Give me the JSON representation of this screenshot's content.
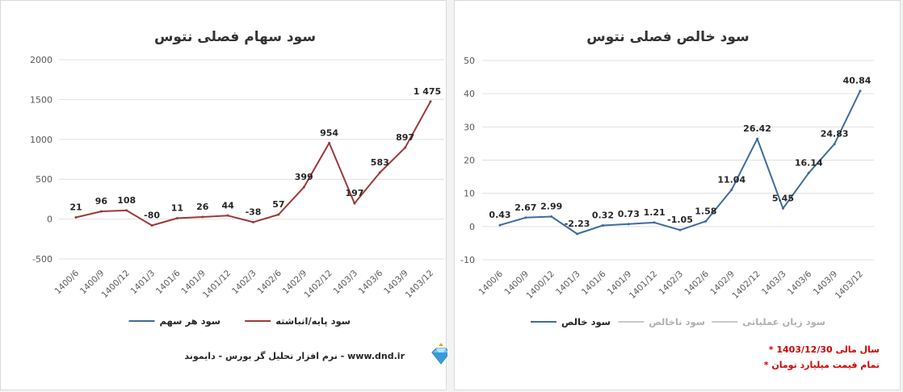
{
  "chart_data": [
    {
      "type": "line",
      "title": "سود سهام فصلی نتوس",
      "categories": [
        "1400/6",
        "1400/9",
        "1400/12",
        "1401/3",
        "1401/6",
        "1401/9",
        "1401/12",
        "1402/3",
        "1402/6",
        "1402/9",
        "1402/12",
        "1403/3",
        "1403/6",
        "1403/9",
        "1403/12"
      ],
      "series": [
        {
          "name": "سود پایه/انباشته",
          "color": "#9b3a3a",
          "values": [
            21,
            96,
            108,
            -80,
            11,
            26,
            44,
            -38,
            57,
            399,
            954,
            197,
            583,
            897,
            1475
          ],
          "labels": [
            "21",
            "96",
            "108",
            "-80",
            "11",
            "26",
            "44",
            "-38",
            "57",
            "399",
            "954",
            "197",
            "583",
            "897",
            "1 475"
          ]
        }
      ],
      "legend": [
        {
          "name": "سود پایه/انباشته",
          "color": "#9b3a3a",
          "active": true
        },
        {
          "name": "سود هر سهم",
          "color": "#3f6c9c",
          "active": true
        }
      ],
      "ylim": [
        -500,
        2000
      ],
      "yticks": [
        -500,
        0,
        500,
        1000,
        1500,
        2000
      ],
      "ytick_labels": [
        "-500",
        "0",
        "500",
        "1000",
        "1500",
        "2000"
      ],
      "grid": true
    },
    {
      "type": "line",
      "title": "سود خالص فصلی نتوس",
      "categories": [
        "1400/6",
        "1400/9",
        "1400/12",
        "1401/3",
        "1401/6",
        "1401/9",
        "1401/12",
        "1402/3",
        "1402/6",
        "1402/9",
        "1402/12",
        "1403/3",
        "1403/6",
        "1403/9",
        "1403/12"
      ],
      "series": [
        {
          "name": "سود خالص",
          "color": "#3f6c9c",
          "values": [
            0.43,
            2.67,
            2.99,
            -2.23,
            0.32,
            0.73,
            1.21,
            -1.05,
            1.58,
            11.04,
            26.42,
            5.45,
            16.14,
            24.83,
            40.84
          ],
          "labels": [
            "0.43",
            "2.67",
            "2.99",
            "-2.23",
            "0.32",
            "0.73",
            "1.21",
            "-1.05",
            "1.58",
            "11.04",
            "26.42",
            "5.45",
            "16.14",
            "24.83",
            "40.84"
          ]
        }
      ],
      "legend": [
        {
          "name": "سود زیان عملیاتی",
          "color": "#c8c8c8",
          "active": false
        },
        {
          "name": "سود ناخالص",
          "color": "#c8c8c8",
          "active": false
        },
        {
          "name": "سود خالص",
          "color": "#3f6c9c",
          "active": true
        }
      ],
      "ylim": [
        -10,
        50
      ],
      "yticks": [
        -10,
        0,
        10,
        20,
        30,
        40,
        50
      ],
      "ytick_labels": [
        "-10",
        "0",
        "10",
        "20",
        "30",
        "40",
        "50"
      ],
      "grid": true
    }
  ],
  "footer": {
    "text": "نرم افزار تحلیل گر بورس - دایموند - www.dnd.ir",
    "logo_icon": "diamond-icon"
  },
  "notes": {
    "fiscal_year": "* سال مالی 1403/12/30",
    "unit": "* تمام قیمت میلیارد تومان"
  }
}
